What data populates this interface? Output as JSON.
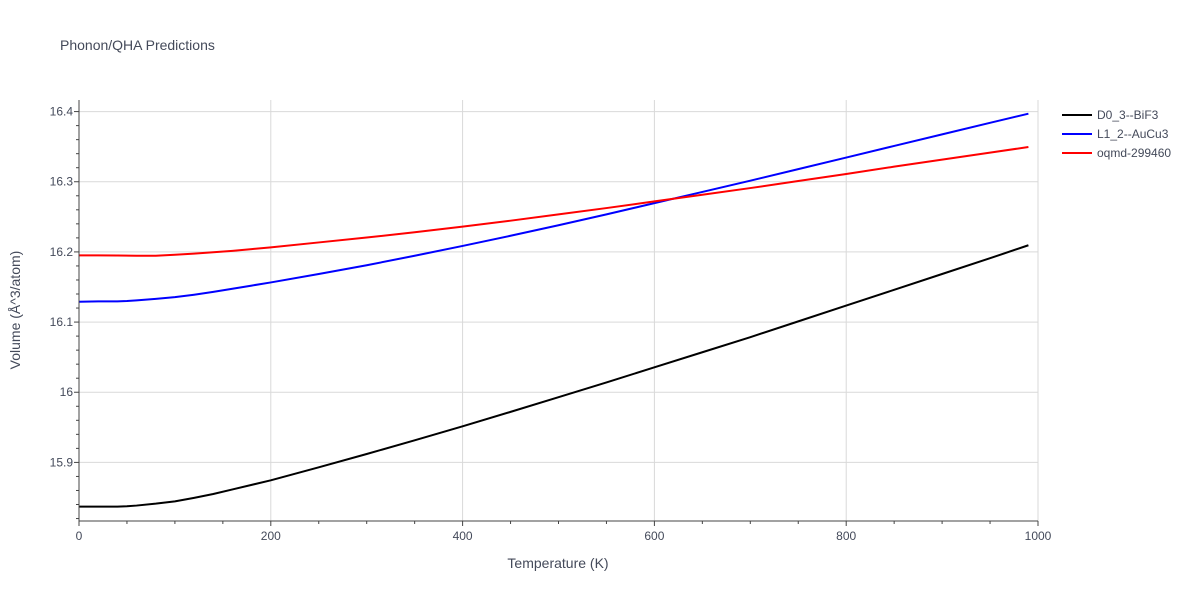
{
  "chart_data": {
    "type": "line",
    "title": "Phonon/QHA Predictions",
    "xlabel": "Temperature (K)",
    "ylabel": "Volume (Å^3/atom)",
    "xlim": [
      0,
      1000
    ],
    "ylim": [
      15.8165,
      16.4165
    ],
    "xticks": [
      0,
      200,
      400,
      600,
      800,
      1000
    ],
    "yticks": [
      15.9,
      16,
      16.1,
      16.2,
      16.3,
      16.4
    ],
    "xtick_labels": [
      "0",
      "200",
      "400",
      "600",
      "800",
      "1000"
    ],
    "ytick_labels": [
      "15.9",
      "16",
      "16.1",
      "16.2",
      "16.3",
      "16.4"
    ],
    "grid": true,
    "legend_position": "top-right",
    "series": [
      {
        "name": "D0_3--BiF3",
        "color": "#000000",
        "x": [
          0,
          20,
          40,
          50,
          60,
          80,
          100,
          120,
          140,
          160,
          180,
          200,
          250,
          300,
          350,
          400,
          450,
          500,
          550,
          600,
          650,
          700,
          750,
          800,
          850,
          900,
          950,
          990
        ],
        "y": [
          15.837,
          15.837,
          15.837,
          15.8375,
          15.8385,
          15.8412,
          15.8445,
          15.8495,
          15.855,
          15.8615,
          15.868,
          15.8745,
          15.893,
          15.912,
          15.9315,
          15.9515,
          15.972,
          15.993,
          16.014,
          16.0355,
          16.057,
          16.0785,
          16.101,
          16.1235,
          16.146,
          16.1685,
          16.191,
          16.2095
        ]
      },
      {
        "name": "L1_2--AuCu3",
        "color": "#0000ff",
        "x": [
          0,
          20,
          40,
          50,
          60,
          80,
          100,
          120,
          140,
          160,
          180,
          200,
          250,
          300,
          350,
          400,
          450,
          500,
          550,
          600,
          650,
          700,
          750,
          800,
          850,
          900,
          950,
          990
        ],
        "y": [
          16.129,
          16.1295,
          16.1295,
          16.13,
          16.131,
          16.133,
          16.1355,
          16.139,
          16.143,
          16.1475,
          16.152,
          16.1565,
          16.1685,
          16.181,
          16.1945,
          16.2085,
          16.223,
          16.238,
          16.2535,
          16.2695,
          16.2855,
          16.3015,
          16.318,
          16.3345,
          16.351,
          16.3675,
          16.384,
          16.397
        ]
      },
      {
        "name": "oqmd-299460",
        "color": "#ff0000",
        "x": [
          0,
          20,
          40,
          60,
          80,
          100,
          120,
          140,
          160,
          180,
          200,
          250,
          300,
          350,
          400,
          450,
          500,
          550,
          600,
          650,
          700,
          750,
          800,
          850,
          900,
          950,
          990
        ],
        "y": [
          16.195,
          16.195,
          16.1948,
          16.1945,
          16.1945,
          16.196,
          16.1975,
          16.1995,
          16.2015,
          16.204,
          16.2065,
          16.2135,
          16.2205,
          16.228,
          16.236,
          16.2445,
          16.2535,
          16.2625,
          16.272,
          16.2815,
          16.291,
          16.301,
          16.311,
          16.3215,
          16.3315,
          16.3415,
          16.3495
        ]
      }
    ]
  }
}
